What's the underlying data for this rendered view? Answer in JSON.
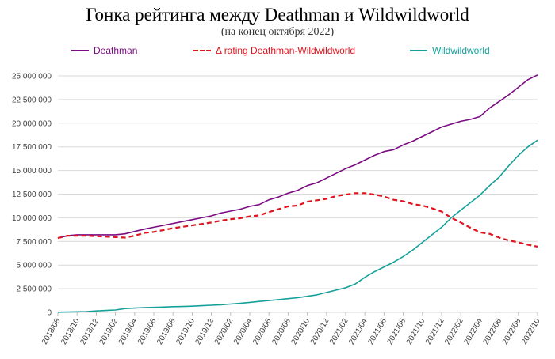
{
  "chart_data": {
    "type": "line",
    "title": "Гонка рейтинга между Deathman и Wildwildworld",
    "subtitle": "(на конец октября 2022)",
    "xlabel": "",
    "ylabel": "",
    "ylim": [
      0,
      25000000
    ],
    "yticks": [
      "0",
      "2 500 000",
      "5 000 000",
      "7 500 000",
      "10 000 000",
      "12 500 000",
      "15 000 000",
      "17 500 000",
      "20 000 000",
      "22 500 000",
      "25 000 000"
    ],
    "ytick_values": [
      0,
      2500000,
      5000000,
      7500000,
      10000000,
      12500000,
      15000000,
      17500000,
      20000000,
      22500000,
      25000000
    ],
    "xticks": [
      "2018/08",
      "2018/10",
      "2018/12",
      "2019/02",
      "2019/04",
      "2019/06",
      "2019/08",
      "2019/10",
      "2019/12",
      "2020/02",
      "2020/04",
      "2020/06",
      "2020/08",
      "2020/10",
      "2020/12",
      "2021/02",
      "2021/04",
      "2021/06",
      "2021/08",
      "2021/10",
      "2021/12",
      "2022/02",
      "2022/04",
      "2022/06",
      "2022/08",
      "2022/10"
    ],
    "x": [
      "2018/08",
      "2018/09",
      "2018/10",
      "2018/11",
      "2018/12",
      "2019/01",
      "2019/02",
      "2019/03",
      "2019/04",
      "2019/05",
      "2019/06",
      "2019/07",
      "2019/08",
      "2019/09",
      "2019/10",
      "2019/11",
      "2019/12",
      "2020/01",
      "2020/02",
      "2020/03",
      "2020/04",
      "2020/05",
      "2020/06",
      "2020/07",
      "2020/08",
      "2020/09",
      "2020/10",
      "2020/11",
      "2020/12",
      "2021/01",
      "2021/02",
      "2021/03",
      "2021/04",
      "2021/05",
      "2021/06",
      "2021/07",
      "2021/08",
      "2021/09",
      "2021/10",
      "2021/11",
      "2021/12",
      "2022/01",
      "2022/02",
      "2022/03",
      "2022/04",
      "2022/05",
      "2022/06",
      "2022/07",
      "2022/08",
      "2022/09",
      "2022/10"
    ],
    "grid": true,
    "legend_position": "top",
    "series": [
      {
        "name": "Deathman",
        "color": "#7B0C82",
        "dash": "solid",
        "values": [
          7850000,
          8100000,
          8200000,
          8200000,
          8200000,
          8200000,
          8200000,
          8300000,
          8550000,
          8800000,
          9000000,
          9200000,
          9400000,
          9600000,
          9800000,
          10000000,
          10200000,
          10500000,
          10700000,
          10900000,
          11200000,
          11400000,
          11900000,
          12200000,
          12600000,
          12900000,
          13400000,
          13700000,
          14200000,
          14700000,
          15200000,
          15600000,
          16100000,
          16600000,
          17000000,
          17200000,
          17700000,
          18100000,
          18600000,
          19100000,
          19600000,
          19900000,
          20200000,
          20400000,
          20700000,
          21600000,
          22300000,
          23000000,
          23800000,
          24600000,
          25100000
        ]
      },
      {
        "name": "Δ rating Deathman-Wildwildworld",
        "color": "#E0141E",
        "dash": "dashed",
        "values": [
          7850000,
          8100000,
          8100000,
          8100000,
          8050000,
          8000000,
          7950000,
          7900000,
          8100000,
          8400000,
          8500000,
          8700000,
          8900000,
          9050000,
          9200000,
          9350000,
          9500000,
          9700000,
          9850000,
          9950000,
          10150000,
          10250000,
          10600000,
          10900000,
          11200000,
          11300000,
          11700000,
          11850000,
          12000000,
          12300000,
          12450000,
          12600000,
          12600000,
          12450000,
          12250000,
          11900000,
          11750000,
          11450000,
          11300000,
          11000000,
          10650000,
          10000000,
          9500000,
          8950000,
          8450000,
          8300000,
          7900000,
          7600000,
          7400000,
          7150000,
          6950000
        ]
      },
      {
        "name": "Wildwildworld",
        "color": "#16A09A",
        "dash": "solid",
        "values": [
          20000,
          30000,
          60000,
          80000,
          150000,
          200000,
          250000,
          400000,
          450000,
          500000,
          530000,
          560000,
          600000,
          620000,
          650000,
          700000,
          750000,
          800000,
          880000,
          950000,
          1050000,
          1150000,
          1250000,
          1350000,
          1450000,
          1550000,
          1700000,
          1850000,
          2100000,
          2350000,
          2600000,
          3000000,
          3700000,
          4300000,
          4800000,
          5300000,
          5900000,
          6600000,
          7400000,
          8200000,
          9000000,
          10000000,
          10800000,
          11600000,
          12400000,
          13400000,
          14300000,
          15500000,
          16600000,
          17500000,
          18200000
        ]
      }
    ]
  }
}
